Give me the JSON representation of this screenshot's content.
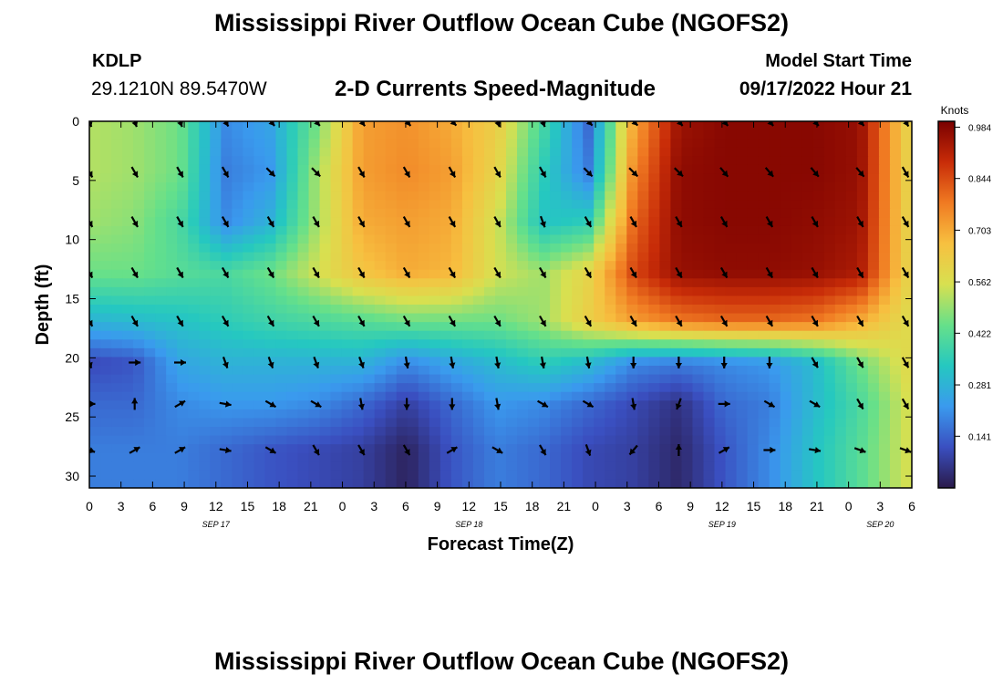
{
  "page": {
    "title_top": "Mississippi River Outflow Ocean Cube (NGOFS2)",
    "title_bottom": "Mississippi River Outflow Ocean Cube (NGOFS2)",
    "station_id": "KDLP",
    "station_coords": "29.1210N  89.5470W",
    "subtitle": "2-D Currents Speed-Magnitude",
    "model_label": "Model Start Time",
    "model_time": "09/17/2022 Hour 21"
  },
  "colors": {
    "colormap": [
      "#2a1a4a",
      "#3a4fc0",
      "#3a9aee",
      "#25c8c0",
      "#66e08a",
      "#d8e050",
      "#f7c040",
      "#f07a22",
      "#c82c08",
      "#7a0000"
    ],
    "arrow": "#000000"
  },
  "chart_data": {
    "type": "heatmap",
    "title": "2-D Currents Speed-Magnitude",
    "xlabel": "Forecast Time(Z)",
    "ylabel": "Depth (ft)",
    "x_ticks": [
      "0",
      "3",
      "6",
      "9",
      "12",
      "15",
      "18",
      "21",
      "0",
      "3",
      "6",
      "9",
      "12",
      "15",
      "18",
      "21",
      "0",
      "3",
      "6",
      "9",
      "12",
      "15",
      "18",
      "21",
      "0",
      "3",
      "6"
    ],
    "date_labels": [
      {
        "label": "SEP 17",
        "hour": 12
      },
      {
        "label": "SEP 18",
        "hour": 36
      },
      {
        "label": "SEP 19",
        "hour": 60
      },
      {
        "label": "SEP 20",
        "hour": 75
      }
    ],
    "xlim_hours": [
      0,
      78
    ],
    "y_ticks": [
      0,
      5,
      10,
      15,
      20,
      25,
      30
    ],
    "ylim": [
      0,
      31
    ],
    "colorbar": {
      "label": "Knots",
      "ticks": [
        "0.984",
        "0.844",
        "0.703",
        "0.562",
        "0.422",
        "0.281",
        "0.141"
      ],
      "range": [
        0,
        1.0
      ]
    },
    "depths_ft": [
      0,
      4.3,
      8.5,
      12.8,
      16.9,
      20.4,
      23.9,
      27.8
    ],
    "hours": [
      0,
      4.3,
      8.6,
      12.9,
      17.2,
      21.5,
      25.8,
      30.1,
      34.4,
      38.7,
      43,
      47.3,
      51.6,
      55.9,
      60.2,
      64.5,
      68.8,
      73.1,
      77.4
    ],
    "speeds": [
      [
        0.52,
        0.5,
        0.45,
        0.2,
        0.25,
        0.45,
        0.72,
        0.74,
        0.7,
        0.62,
        0.4,
        0.15,
        0.7,
        0.95,
        0.98,
        0.98,
        0.98,
        0.96,
        0.62
      ],
      [
        0.52,
        0.5,
        0.45,
        0.18,
        0.22,
        0.5,
        0.72,
        0.75,
        0.72,
        0.6,
        0.35,
        0.18,
        0.75,
        0.97,
        0.98,
        0.98,
        0.98,
        0.96,
        0.62
      ],
      [
        0.5,
        0.48,
        0.4,
        0.2,
        0.28,
        0.5,
        0.7,
        0.72,
        0.7,
        0.55,
        0.32,
        0.35,
        0.8,
        0.97,
        0.98,
        0.98,
        0.97,
        0.95,
        0.62
      ],
      [
        0.45,
        0.45,
        0.42,
        0.4,
        0.45,
        0.55,
        0.65,
        0.7,
        0.68,
        0.55,
        0.5,
        0.6,
        0.85,
        0.96,
        0.97,
        0.97,
        0.96,
        0.93,
        0.62
      ],
      [
        0.28,
        0.3,
        0.32,
        0.35,
        0.38,
        0.4,
        0.42,
        0.45,
        0.45,
        0.45,
        0.5,
        0.62,
        0.72,
        0.78,
        0.8,
        0.8,
        0.78,
        0.7,
        0.58
      ],
      [
        0.1,
        0.12,
        0.25,
        0.28,
        0.28,
        0.28,
        0.28,
        0.2,
        0.25,
        0.3,
        0.35,
        0.3,
        0.2,
        0.18,
        0.2,
        0.22,
        0.3,
        0.45,
        0.58
      ],
      [
        0.15,
        0.15,
        0.2,
        0.22,
        0.22,
        0.2,
        0.15,
        0.08,
        0.15,
        0.22,
        0.2,
        0.15,
        0.1,
        0.05,
        0.15,
        0.18,
        0.3,
        0.4,
        0.55
      ],
      [
        0.18,
        0.18,
        0.18,
        0.15,
        0.12,
        0.1,
        0.08,
        0.02,
        0.12,
        0.18,
        0.15,
        0.1,
        0.08,
        0.03,
        0.12,
        0.2,
        0.32,
        0.42,
        0.55
      ]
    ],
    "direction_deg": [
      [
        160,
        160,
        160,
        150,
        140,
        140,
        145,
        140,
        135,
        160,
        160,
        135,
        135,
        140,
        140,
        140,
        140,
        140,
        150
      ],
      [
        150,
        150,
        150,
        150,
        135,
        135,
        150,
        150,
        150,
        150,
        150,
        135,
        135,
        135,
        140,
        140,
        140,
        140,
        150
      ],
      [
        150,
        150,
        150,
        150,
        150,
        150,
        150,
        150,
        150,
        150,
        160,
        150,
        150,
        150,
        150,
        150,
        150,
        150,
        150
      ],
      [
        150,
        150,
        150,
        150,
        150,
        150,
        150,
        150,
        150,
        150,
        150,
        150,
        150,
        150,
        150,
        150,
        150,
        150,
        150
      ],
      [
        150,
        150,
        150,
        150,
        150,
        150,
        150,
        150,
        150,
        150,
        150,
        150,
        150,
        150,
        150,
        150,
        150,
        150,
        150
      ],
      [
        160,
        90,
        90,
        160,
        160,
        160,
        160,
        170,
        170,
        170,
        170,
        170,
        180,
        180,
        180,
        180,
        150,
        150,
        150
      ],
      [
        90,
        0,
        60,
        100,
        120,
        120,
        170,
        180,
        180,
        170,
        120,
        120,
        170,
        200,
        90,
        120,
        120,
        150,
        150
      ],
      [
        110,
        60,
        60,
        100,
        120,
        150,
        150,
        150,
        60,
        120,
        150,
        160,
        220,
        0,
        60,
        90,
        100,
        110,
        110
      ]
    ]
  }
}
